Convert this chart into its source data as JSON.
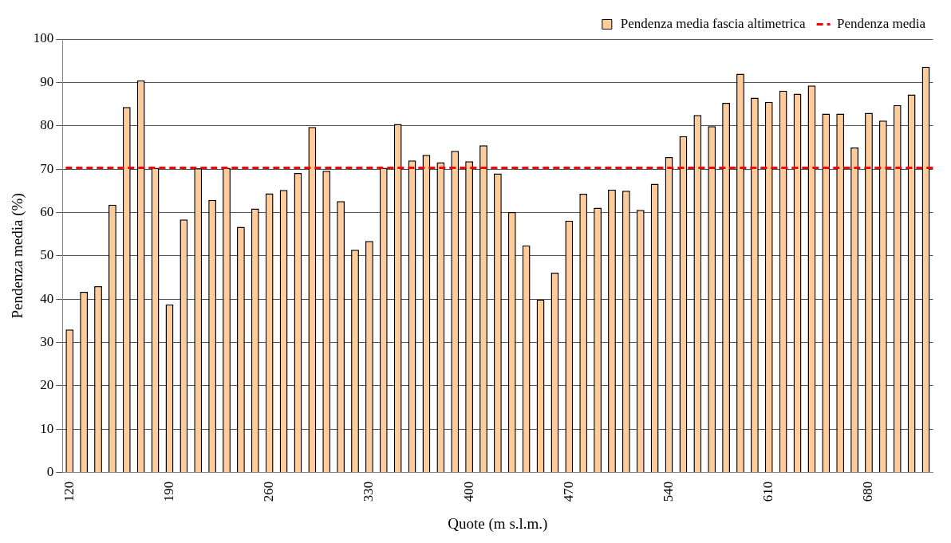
{
  "chart_data": {
    "type": "bar",
    "xlabel": "Quote (m s.l.m.)",
    "ylabel": "Pendenza media (%)",
    "categories": [
      "120",
      null,
      null,
      null,
      null,
      null,
      null,
      "190",
      null,
      null,
      null,
      null,
      null,
      null,
      "260",
      null,
      null,
      null,
      null,
      null,
      null,
      "330",
      null,
      null,
      null,
      null,
      null,
      null,
      "400",
      null,
      null,
      null,
      null,
      null,
      null,
      "470",
      null,
      null,
      null,
      null,
      null,
      null,
      "540",
      null,
      null,
      null,
      null,
      null,
      null,
      "610",
      null,
      null,
      null,
      null,
      null,
      null,
      "680",
      null,
      null,
      null,
      null
    ],
    "series": [
      {
        "name": "Pendenza media fascia altimetrica",
        "color": "#ffcc99",
        "values": [
          33,
          41.7,
          43,
          61.8,
          84.3,
          90.5,
          70.3,
          38.8,
          58.4,
          70.2,
          62.9,
          70.3,
          56.7,
          60.9,
          64.4,
          65.2,
          69.1,
          79.7,
          69.6,
          62.6,
          51.4,
          53.4,
          70.3,
          80.4,
          72,
          73.3,
          71.6,
          74.2,
          71.8,
          75.5,
          69,
          60.1,
          52.4,
          39.9,
          46.1,
          58.1,
          64.3,
          61.1,
          65.3,
          65,
          60.6,
          66.6,
          72.8,
          77.6,
          82.5,
          79.9,
          85.3,
          92,
          86.5,
          85.5,
          88.1,
          87.4,
          89.3,
          82.8,
          82.8,
          75,
          83,
          81.2,
          84.8,
          87.2,
          93.6
        ]
      }
    ],
    "ref_lines": [
      {
        "axis": "y",
        "value": 70.3,
        "label": "Pendenza media",
        "color": "#ff0000",
        "line_style": "dashed"
      }
    ],
    "ylim": [
      0,
      100
    ],
    "yticks": [
      0,
      10,
      20,
      30,
      40,
      50,
      60,
      70,
      80,
      90,
      100
    ],
    "grid": "y",
    "legend": "top right"
  }
}
